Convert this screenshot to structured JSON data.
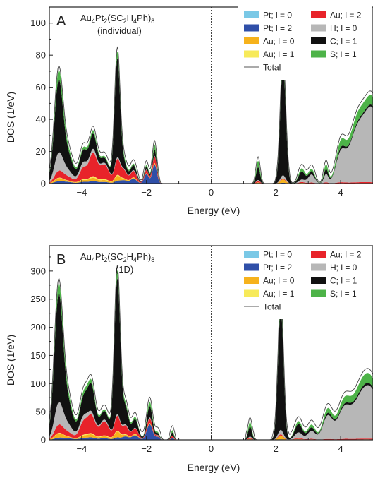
{
  "legend": {
    "items": [
      {
        "label": "Pt; l = 0",
        "color": "#7ac8e6",
        "kind": "box"
      },
      {
        "label": "Au; l = 2",
        "color": "#e8232a",
        "kind": "box"
      },
      {
        "label": "Pt; l = 2",
        "color": "#2f4fa8",
        "kind": "box"
      },
      {
        "label": "H; l = 0",
        "color": "#b7b7b7",
        "kind": "box"
      },
      {
        "label": "Au; l = 0",
        "color": "#f6b21c",
        "kind": "box"
      },
      {
        "label": "C; l = 1",
        "color": "#111111",
        "kind": "box"
      },
      {
        "label": "Au; l = 1",
        "color": "#f7ea5a",
        "kind": "box"
      },
      {
        "label": "S; l = 1",
        "color": "#4db348",
        "kind": "box"
      },
      {
        "label": "Total",
        "color": "#555555",
        "kind": "line"
      }
    ]
  },
  "chart_data": [
    {
      "type": "area",
      "panel": "A",
      "title_main": "Au",
      "title_sub1": "4",
      "title_mid1": "Pt",
      "title_sub2": "2",
      "title_mid2": "(SC",
      "title_sub3": "2",
      "title_mid3": "H",
      "title_sub4": "4",
      "title_mid4": "Ph)",
      "title_sub5": "8",
      "subtitle": "(individual)",
      "xlabel": "Energy (eV)",
      "ylabel": "DOS (1/eV)",
      "xlim": [
        -5,
        5
      ],
      "ylim": [
        0,
        110
      ],
      "xticks": [
        -4,
        -2,
        0,
        2,
        4
      ],
      "xtick_labels": [
        "−4",
        "−2",
        "0",
        "2",
        "4"
      ],
      "yticks": [
        0,
        20,
        40,
        60,
        80,
        100
      ],
      "ytick_labels": [
        "0",
        "20",
        "40",
        "60",
        "80",
        "100"
      ],
      "fermi_level": 0,
      "gap": [
        -1.45,
        1.2
      ],
      "peaks": [
        {
          "e": -4.72,
          "w": 0.13,
          "pt": 1.2,
          "au2": 3.5,
          "h": 10.0,
          "c": 42.0,
          "s": 5.0
        },
        {
          "e": -4.45,
          "w": 0.18,
          "pt": 1.0,
          "au2": 2.5,
          "h": 4.0,
          "c": 10.0,
          "s": 2.5
        },
        {
          "e": -3.95,
          "w": 0.12,
          "pt": 1.0,
          "au2": 7.0,
          "h": 3.0,
          "c": 7.0,
          "s": 1.5
        },
        {
          "e": -3.65,
          "w": 0.12,
          "pt": 1.5,
          "au2": 14.0,
          "h": 2.0,
          "c": 9.0,
          "s": 2.0
        },
        {
          "e": -3.3,
          "w": 0.15,
          "pt": 1.0,
          "au2": 9.0,
          "h": 1.0,
          "c": 3.0,
          "s": 1.0
        },
        {
          "e": -2.9,
          "w": 0.085,
          "pt": 1.5,
          "au2": 9.0,
          "h": 1.0,
          "c": 61.0,
          "s": 4.0
        },
        {
          "e": -2.7,
          "w": 0.1,
          "pt": 2.0,
          "au2": 5.0,
          "h": 0.5,
          "c": 4.0,
          "s": 1.5
        },
        {
          "e": -2.4,
          "w": 0.1,
          "pt": 3.0,
          "au2": 4.0,
          "h": 0.5,
          "c": 3.0,
          "s": 1.0
        },
        {
          "e": -2.0,
          "w": 0.07,
          "pt": 6.0,
          "au2": 2.0,
          "h": 0.3,
          "c": 2.0,
          "s": 1.0
        },
        {
          "e": -1.75,
          "w": 0.07,
          "pt": 12.0,
          "au2": 4.0,
          "h": 0.5,
          "c": 4.0,
          "s": 3.0
        },
        {
          "e": 1.45,
          "w": 0.06,
          "pt": 0.3,
          "au2": 1.0,
          "h": 0.5,
          "c": 8.0,
          "s": 4.0
        },
        {
          "e": 2.22,
          "w": 0.085,
          "pt": 0.5,
          "au2": 0.5,
          "h": 2.0,
          "c": 68.0,
          "s": 5.0
        },
        {
          "e": 2.8,
          "w": 0.1,
          "pt": 0.2,
          "au2": 0.5,
          "h": 1.5,
          "c": 5.0,
          "s": 2.0
        },
        {
          "e": 3.1,
          "w": 0.1,
          "pt": 0.1,
          "au2": 0.4,
          "h": 5.0,
          "c": 2.0,
          "s": 1.5
        },
        {
          "e": 3.55,
          "w": 0.07,
          "pt": 0.1,
          "au2": 0.5,
          "h": 5.0,
          "c": 3.0,
          "s": 3.0
        },
        {
          "e": 4.0,
          "w": 0.15,
          "pt": 0.1,
          "au2": 0.5,
          "h": 16.0,
          "c": 1.5,
          "s": 4.0
        },
        {
          "e": 4.5,
          "w": 0.25,
          "pt": 0.1,
          "au2": 0.5,
          "h": 30.0,
          "c": 1.0,
          "s": 5.0
        },
        {
          "e": 5.0,
          "w": 0.25,
          "pt": 0.1,
          "au2": 0.5,
          "h": 42.0,
          "c": 1.0,
          "s": 5.0
        }
      ],
      "total_extra": 2.5
    },
    {
      "type": "area",
      "panel": "B",
      "subtitle": "(1D)",
      "xlabel": "Energy (eV)",
      "ylabel": "DOS (1/eV)",
      "xlim": [
        -5,
        5
      ],
      "ylim": [
        0,
        345
      ],
      "xticks": [
        -4,
        -2,
        0,
        2,
        4
      ],
      "xtick_labels": [
        "−4",
        "−2",
        "0",
        "2",
        "4"
      ],
      "yticks": [
        0,
        50,
        100,
        150,
        200,
        250,
        300
      ],
      "ytick_labels": [
        "0",
        "50",
        "100",
        "150",
        "200",
        "250",
        "300"
      ],
      "fermi_level": 0,
      "gap": [
        -1.1,
        1.05
      ],
      "peaks": [
        {
          "e": -4.72,
          "w": 0.13,
          "pt": 3.0,
          "au2": 12.0,
          "h": 35.0,
          "c": 180.0,
          "s": 15.0
        },
        {
          "e": -4.45,
          "w": 0.18,
          "pt": 3.0,
          "au2": 8.0,
          "h": 14.0,
          "c": 40.0,
          "s": 8.0
        },
        {
          "e": -3.95,
          "w": 0.12,
          "pt": 3.0,
          "au2": 22.0,
          "h": 8.0,
          "c": 30.0,
          "s": 6.0
        },
        {
          "e": -3.7,
          "w": 0.12,
          "pt": 4.0,
          "au2": 30.0,
          "h": 5.0,
          "c": 45.0,
          "s": 6.0
        },
        {
          "e": -3.3,
          "w": 0.15,
          "pt": 3.0,
          "au2": 25.0,
          "h": 3.0,
          "c": 15.0,
          "s": 3.0
        },
        {
          "e": -2.9,
          "w": 0.09,
          "pt": 4.0,
          "au2": 25.0,
          "h": 3.0,
          "c": 240.0,
          "s": 14.0
        },
        {
          "e": -2.65,
          "w": 0.1,
          "pt": 6.0,
          "au2": 15.0,
          "h": 2.0,
          "c": 30.0,
          "s": 5.0
        },
        {
          "e": -2.35,
          "w": 0.1,
          "pt": 8.0,
          "au2": 10.0,
          "h": 1.0,
          "c": 15.0,
          "s": 4.0
        },
        {
          "e": -1.9,
          "w": 0.09,
          "pt": 28.0,
          "au2": 8.0,
          "h": 2.0,
          "c": 20.0,
          "s": 8.0
        },
        {
          "e": -1.65,
          "w": 0.06,
          "pt": 5.0,
          "au2": 2.0,
          "h": 0.5,
          "c": 3.0,
          "s": 2.0
        },
        {
          "e": -1.2,
          "w": 0.05,
          "pt": 3.0,
          "au2": 3.0,
          "h": 0.5,
          "c": 6.0,
          "s": 4.0
        },
        {
          "e": 1.2,
          "w": 0.06,
          "pt": 1.0,
          "au2": 2.0,
          "h": 2.0,
          "c": 18.0,
          "s": 8.0
        },
        {
          "e": 2.15,
          "w": 0.085,
          "pt": 1.0,
          "au2": 2.0,
          "h": 8.0,
          "c": 215.0,
          "s": 15.0
        },
        {
          "e": 2.7,
          "w": 0.12,
          "pt": 1.0,
          "au2": 1.5,
          "h": 10.0,
          "c": 15.0,
          "s": 5.0
        },
        {
          "e": 3.1,
          "w": 0.12,
          "pt": 0.5,
          "au2": 1.0,
          "h": 14.0,
          "c": 6.0,
          "s": 5.0
        },
        {
          "e": 3.6,
          "w": 0.15,
          "pt": 0.3,
          "au2": 1.0,
          "h": 40.0,
          "c": 4.0,
          "s": 8.0
        },
        {
          "e": 4.1,
          "w": 0.2,
          "pt": 0.3,
          "au2": 1.0,
          "h": 50.0,
          "c": 3.0,
          "s": 10.0
        },
        {
          "e": 4.6,
          "w": 0.25,
          "pt": 0.3,
          "au2": 1.0,
          "h": 60.0,
          "c": 3.0,
          "s": 12.0
        },
        {
          "e": 5.0,
          "w": 0.25,
          "pt": 0.3,
          "au2": 1.0,
          "h": 70.0,
          "c": 3.0,
          "s": 12.0
        }
      ],
      "total_extra": 8.0
    }
  ]
}
